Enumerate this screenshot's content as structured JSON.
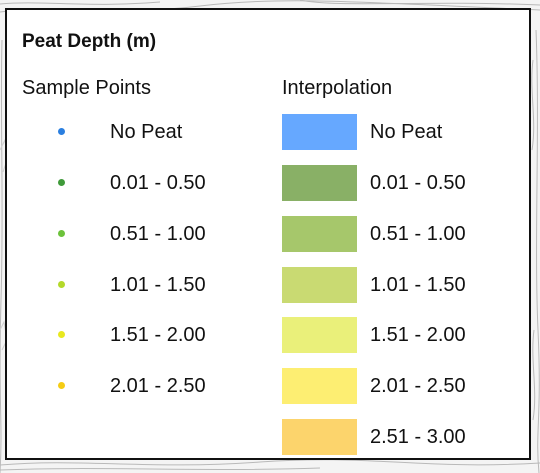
{
  "legend": {
    "title": "Peat Depth (m)",
    "sample_points_heading": "Sample Points",
    "interpolation_heading": "Interpolation",
    "sample_points": [
      {
        "label": "No Peat",
        "color": "#2a7fe0"
      },
      {
        "label": "0.01 - 0.50",
        "color": "#3f9a3a"
      },
      {
        "label": "0.51 - 1.00",
        "color": "#6cc23b"
      },
      {
        "label": "1.01 - 1.50",
        "color": "#b4d92a"
      },
      {
        "label": "1.51 - 2.00",
        "color": "#e8e81f"
      },
      {
        "label": "2.01 - 2.50",
        "color": "#f5cc14"
      }
    ],
    "interpolation": [
      {
        "label": "No Peat",
        "color": "#66a8ff"
      },
      {
        "label": "0.01 - 0.50",
        "color": "#89b066"
      },
      {
        "label": "0.51 - 1.00",
        "color": "#a6c76b"
      },
      {
        "label": "1.01 - 1.50",
        "color": "#c9da72"
      },
      {
        "label": "1.51 - 2.00",
        "color": "#eaf07a"
      },
      {
        "label": "2.01 - 2.50",
        "color": "#fdee72"
      },
      {
        "label": "2.51 - 3.00",
        "color": "#fcd46c"
      }
    ]
  }
}
